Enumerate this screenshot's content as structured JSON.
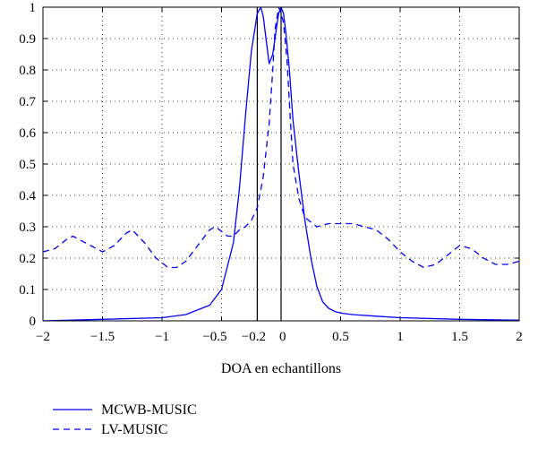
{
  "chart_data": {
    "type": "line",
    "title": "",
    "xlabel": "DOA en echantillons",
    "ylabel": "",
    "xlim": [
      -2,
      2
    ],
    "ylim": [
      0,
      1
    ],
    "grid": true,
    "legend_position": "bottom-left",
    "x_ticks": [
      -2,
      -1.5,
      -1,
      -0.5,
      -0.2,
      0,
      0.5,
      1,
      1.5,
      2
    ],
    "x_tick_labels": [
      "−2",
      "−1.5",
      "−1",
      "−0.5",
      "−0.2",
      "0",
      "0.5",
      "1",
      "1.5",
      "2"
    ],
    "y_ticks": [
      0,
      0.1,
      0.2,
      0.3,
      0.4,
      0.5,
      0.6,
      0.7,
      0.8,
      0.9,
      1
    ],
    "y_tick_labels": [
      "0",
      "0.1",
      "0.2",
      "0.3",
      "0.4",
      "0.5",
      "0.6",
      "0.7",
      "0.8",
      "0.9",
      "1"
    ],
    "vertical_lines": [
      -0.2,
      0
    ],
    "series": [
      {
        "name": "MCWB-MUSIC",
        "style": "solid",
        "color": "#0000ff",
        "x": [
          -2.0,
          -1.5,
          -1.0,
          -0.8,
          -0.6,
          -0.5,
          -0.4,
          -0.35,
          -0.3,
          -0.25,
          -0.2,
          -0.17,
          -0.15,
          -0.12,
          -0.1,
          -0.07,
          -0.04,
          -0.02,
          0.0,
          0.02,
          0.04,
          0.07,
          0.1,
          0.15,
          0.2,
          0.25,
          0.3,
          0.35,
          0.4,
          0.45,
          0.5,
          0.6,
          0.8,
          1.0,
          1.5,
          2.0
        ],
        "y": [
          0.0,
          0.005,
          0.01,
          0.02,
          0.05,
          0.1,
          0.25,
          0.42,
          0.65,
          0.86,
          0.98,
          1.0,
          0.97,
          0.88,
          0.82,
          0.85,
          0.93,
          0.98,
          1.0,
          0.98,
          0.92,
          0.8,
          0.64,
          0.47,
          0.32,
          0.2,
          0.11,
          0.06,
          0.04,
          0.03,
          0.025,
          0.02,
          0.015,
          0.01,
          0.005,
          0.002
        ]
      },
      {
        "name": "LV-MUSIC",
        "style": "dashed",
        "color": "#0000ff",
        "x": [
          -2.0,
          -1.9,
          -1.8,
          -1.75,
          -1.6,
          -1.5,
          -1.4,
          -1.3,
          -1.25,
          -1.15,
          -1.05,
          -0.95,
          -0.88,
          -0.8,
          -0.7,
          -0.6,
          -0.55,
          -0.45,
          -0.4,
          -0.35,
          -0.3,
          -0.25,
          -0.2,
          -0.15,
          -0.1,
          -0.07,
          -0.05,
          -0.02,
          0.0,
          0.02,
          0.05,
          0.08,
          0.1,
          0.15,
          0.2,
          0.3,
          0.4,
          0.5,
          0.6,
          0.7,
          0.8,
          0.9,
          1.0,
          1.1,
          1.2,
          1.3,
          1.4,
          1.5,
          1.6,
          1.7,
          1.8,
          1.9,
          2.0
        ],
        "y": [
          0.22,
          0.23,
          0.26,
          0.27,
          0.24,
          0.22,
          0.24,
          0.28,
          0.29,
          0.25,
          0.2,
          0.17,
          0.17,
          0.19,
          0.24,
          0.29,
          0.3,
          0.27,
          0.27,
          0.29,
          0.3,
          0.32,
          0.36,
          0.46,
          0.63,
          0.8,
          0.93,
          1.0,
          0.98,
          0.95,
          0.83,
          0.63,
          0.5,
          0.39,
          0.33,
          0.3,
          0.31,
          0.31,
          0.31,
          0.3,
          0.29,
          0.26,
          0.22,
          0.19,
          0.17,
          0.18,
          0.21,
          0.24,
          0.23,
          0.2,
          0.18,
          0.18,
          0.19
        ]
      }
    ]
  }
}
